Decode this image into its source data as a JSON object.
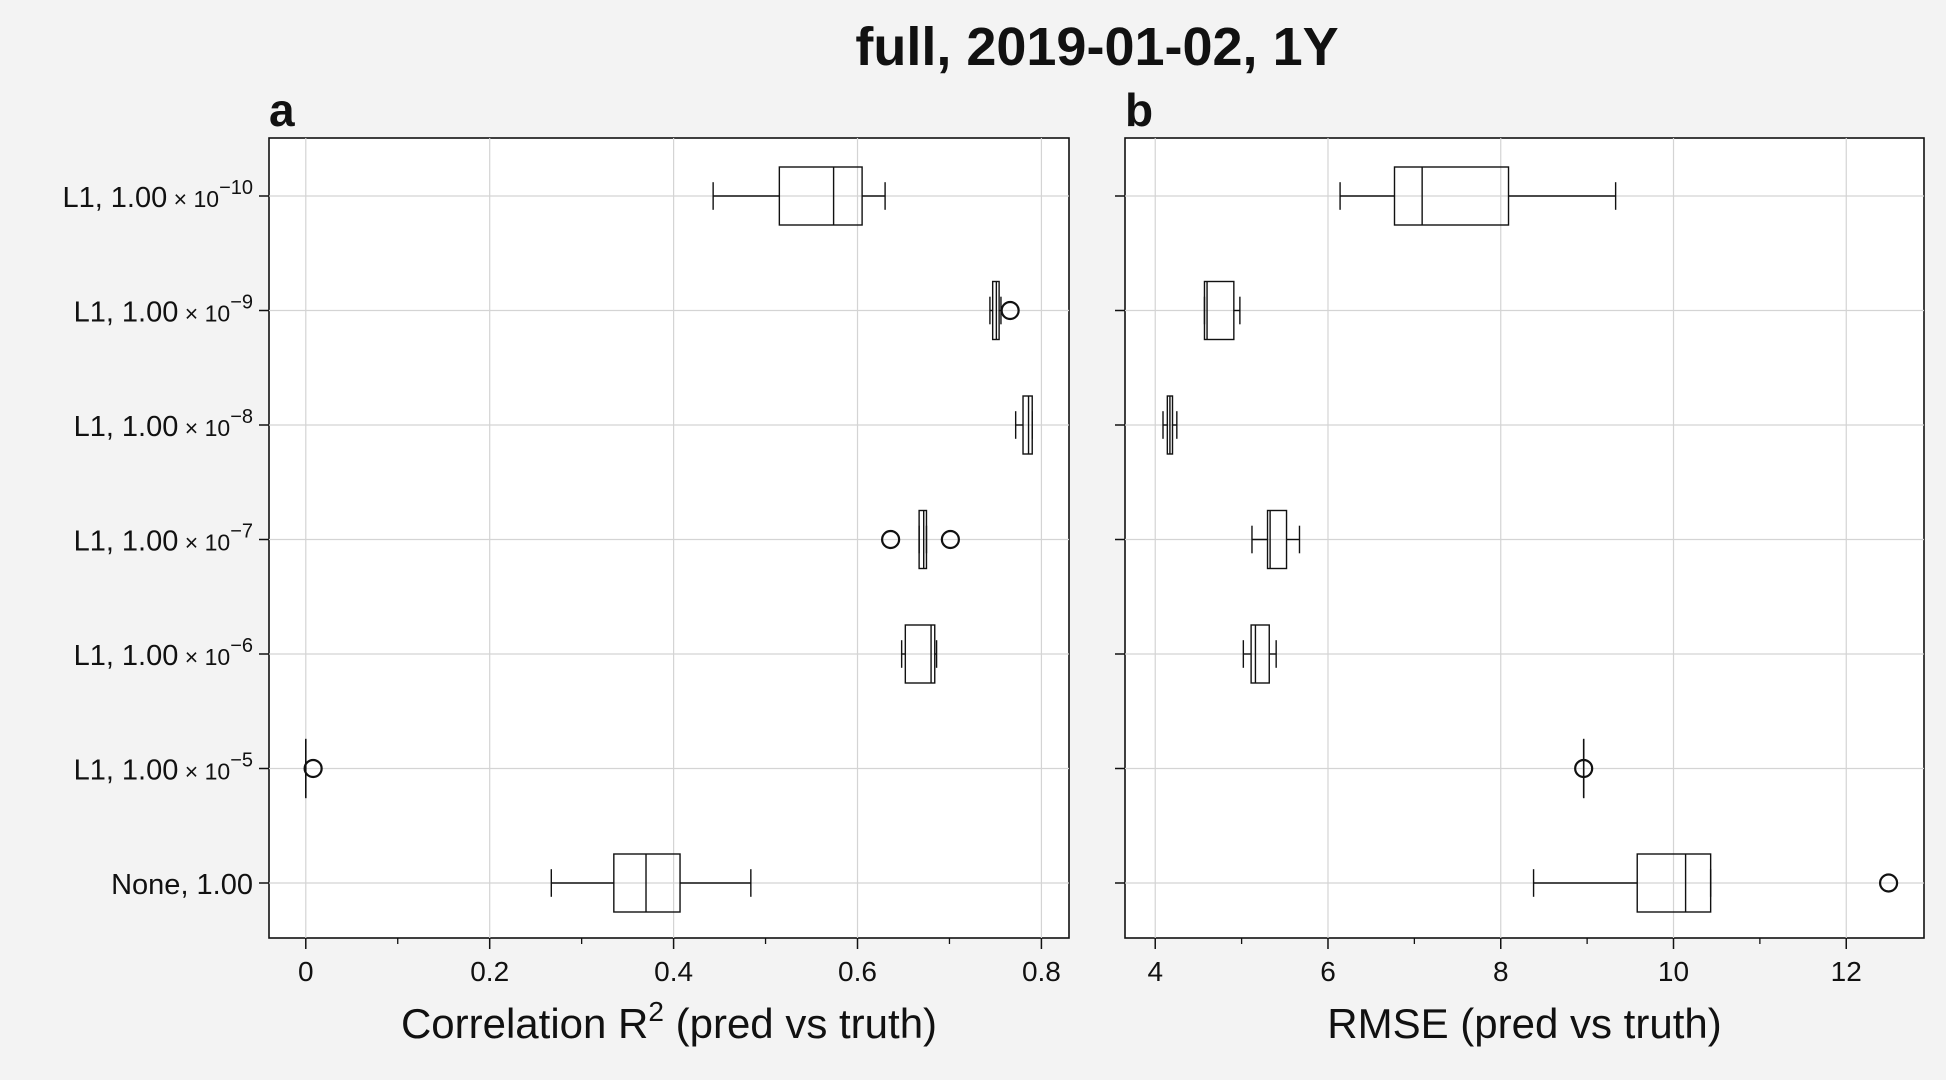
{
  "chart_data": {
    "type": "box",
    "title": "full, 2019-01-02, 1Y",
    "categories": [
      {
        "prefix": "L1, 1.00",
        "sup": "−10"
      },
      {
        "prefix": "L1, 1.00",
        "sup": "−9"
      },
      {
        "prefix": "L1, 1.00",
        "sup": "−8"
      },
      {
        "prefix": "L1, 1.00",
        "sup": "−7"
      },
      {
        "prefix": "L1, 1.00",
        "sup": "−6"
      },
      {
        "prefix": "L1, 1.00",
        "sup": "−5"
      },
      {
        "prefix": "None, 1.00",
        "sup": ""
      }
    ],
    "times_ten": "× 10",
    "panels": [
      {
        "label": "a",
        "xlabel_main": "Correlation R",
        "xlabel_sup": "2",
        "xlabel_rest": " (pred vs truth)",
        "xlim": [
          -0.04,
          0.83
        ],
        "xticks": [
          0,
          0.2,
          0.4,
          0.6,
          0.8
        ],
        "xtick_labels": [
          "0",
          "0.2",
          "0.4",
          "0.6",
          "0.8"
        ],
        "boxes": [
          {
            "whislo": 0.443,
            "q1": 0.515,
            "med": 0.574,
            "q3": 0.605,
            "whishi": 0.63,
            "fliers": []
          },
          {
            "whislo": 0.744,
            "q1": 0.747,
            "med": 0.751,
            "q3": 0.754,
            "whishi": 0.756,
            "fliers": [
              0.766
            ]
          },
          {
            "whislo": 0.772,
            "q1": 0.78,
            "med": 0.786,
            "q3": 0.79,
            "whishi": 0.79,
            "fliers": []
          },
          {
            "whislo": 0.667,
            "q1": 0.667,
            "med": 0.672,
            "q3": 0.675,
            "whishi": 0.675,
            "fliers": [
              0.636,
              0.701
            ]
          },
          {
            "whislo": 0.648,
            "q1": 0.652,
            "med": 0.68,
            "q3": 0.684,
            "whishi": 0.686,
            "fliers": []
          },
          {
            "whislo": 0.0,
            "q1": 0.0,
            "med": 0.0,
            "q3": 0.0,
            "whishi": 0.0,
            "fliers": [
              0.008
            ]
          },
          {
            "whislo": 0.267,
            "q1": 0.335,
            "med": 0.37,
            "q3": 0.407,
            "whishi": 0.484,
            "fliers": []
          }
        ]
      },
      {
        "label": "b",
        "xlabel_main": "RMSE (pred vs truth)",
        "xlabel_sup": "",
        "xlabel_rest": "",
        "xlim": [
          3.65,
          12.9
        ],
        "xticks": [
          4,
          6,
          8,
          10,
          12
        ],
        "xtick_labels": [
          "4",
          "6",
          "8",
          "10",
          "12"
        ],
        "boxes": [
          {
            "whislo": 6.14,
            "q1": 6.77,
            "med": 7.09,
            "q3": 8.09,
            "whishi": 9.33,
            "fliers": []
          },
          {
            "whislo": 4.57,
            "q1": 4.57,
            "med": 4.6,
            "q3": 4.91,
            "whishi": 4.98,
            "fliers": []
          },
          {
            "whislo": 4.09,
            "q1": 4.14,
            "med": 4.17,
            "q3": 4.2,
            "whishi": 4.25,
            "fliers": []
          },
          {
            "whislo": 5.12,
            "q1": 5.3,
            "med": 5.33,
            "q3": 5.52,
            "whishi": 5.67,
            "fliers": []
          },
          {
            "whislo": 5.02,
            "q1": 5.11,
            "med": 5.16,
            "q3": 5.32,
            "whishi": 5.4,
            "fliers": []
          },
          {
            "whislo": 8.96,
            "q1": 8.96,
            "med": 8.96,
            "q3": 8.96,
            "whishi": 8.96,
            "fliers": [
              8.96
            ]
          },
          {
            "whislo": 8.38,
            "q1": 9.58,
            "med": 10.14,
            "q3": 10.43,
            "whishi": 10.43,
            "fliers": [
              12.49
            ]
          }
        ]
      }
    ]
  }
}
